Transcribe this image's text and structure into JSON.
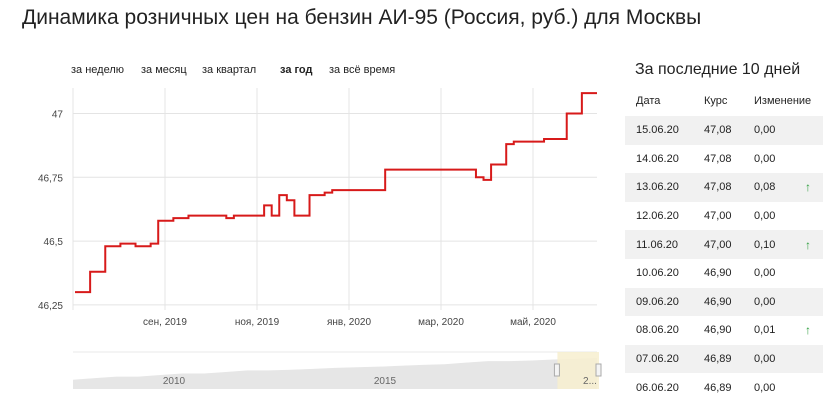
{
  "title": "Динамика розничных цен на бензин АИ-95 (Россия, руб.) для Москвы",
  "periods": [
    {
      "label": "за неделю",
      "active": false
    },
    {
      "label": "за месяц",
      "active": false
    },
    {
      "label": "за квартал",
      "active": false
    },
    {
      "label": "за год",
      "active": true
    },
    {
      "label": "за всё время",
      "active": false
    }
  ],
  "colors": {
    "line": "#d71a1a",
    "grid": "#e4e4e4",
    "navigator_fill": "#e6e6e6",
    "navigator_selection": "#f7efcf"
  },
  "chart_data": {
    "type": "line",
    "title": "",
    "xlabel": "",
    "ylabel": "",
    "x_tick_labels": [
      "сен, 2019",
      "ноя, 2019",
      "янв, 2020",
      "мар, 2020",
      "май, 2020"
    ],
    "y_tick_labels": [
      "46,25",
      "46,5",
      "46,75",
      "47"
    ],
    "ylim": [
      46.23,
      47.1
    ],
    "grid": true,
    "series": [
      {
        "values": [
          46.3,
          46.3,
          46.38,
          46.38,
          46.48,
          46.48,
          46.49,
          46.49,
          46.48,
          46.48,
          46.49,
          46.58,
          46.58,
          46.59,
          46.59,
          46.6,
          46.6,
          46.6,
          46.6,
          46.6,
          46.59,
          46.6,
          46.6,
          46.6,
          46.6,
          46.64,
          46.6,
          46.68,
          46.66,
          46.6,
          46.6,
          46.68,
          46.68,
          46.69,
          46.7,
          46.7,
          46.7,
          46.7,
          46.7,
          46.7,
          46.7,
          46.78,
          46.78,
          46.78,
          46.78,
          46.78,
          46.78,
          46.78,
          46.78,
          46.78,
          46.78,
          46.78,
          46.78,
          46.75,
          46.74,
          46.8,
          46.8,
          46.88,
          46.89,
          46.89,
          46.89,
          46.89,
          46.9,
          46.9,
          46.9,
          47.0,
          47.0,
          47.08,
          47.08,
          47.08
        ]
      }
    ],
    "navigator": {
      "tick_labels": [
        "2010",
        "2015",
        "2..."
      ],
      "values": [
        0.3,
        0.35,
        0.4,
        0.4,
        0.45,
        0.5,
        0.5,
        0.55,
        0.6,
        0.6,
        0.62,
        0.65,
        0.68,
        0.7,
        0.72,
        0.75,
        0.78,
        0.8,
        0.85,
        0.9,
        0.9,
        0.92,
        0.95,
        0.97,
        1.0
      ],
      "selection": [
        0.955,
        1.0
      ]
    }
  },
  "side": {
    "title": "За последние 10 дней",
    "headers": [
      "Дата",
      "Курс",
      "Изменение"
    ],
    "rows": [
      {
        "date": "15.06.20",
        "rate": "47,08",
        "change": "0,00",
        "up": false
      },
      {
        "date": "14.06.20",
        "rate": "47,08",
        "change": "0,00",
        "up": false
      },
      {
        "date": "13.06.20",
        "rate": "47,08",
        "change": "0,08",
        "up": true
      },
      {
        "date": "12.06.20",
        "rate": "47,00",
        "change": "0,00",
        "up": false
      },
      {
        "date": "11.06.20",
        "rate": "47,00",
        "change": "0,10",
        "up": true
      },
      {
        "date": "10.06.20",
        "rate": "46,90",
        "change": "0,00",
        "up": false
      },
      {
        "date": "09.06.20",
        "rate": "46,90",
        "change": "0,00",
        "up": false
      },
      {
        "date": "08.06.20",
        "rate": "46,90",
        "change": "0,01",
        "up": true
      },
      {
        "date": "07.06.20",
        "rate": "46,89",
        "change": "0,00",
        "up": false
      },
      {
        "date": "06.06.20",
        "rate": "46,89",
        "change": "0,00",
        "up": false
      }
    ],
    "up_icon": "arrow-up-icon",
    "up_glyph": "↑"
  }
}
